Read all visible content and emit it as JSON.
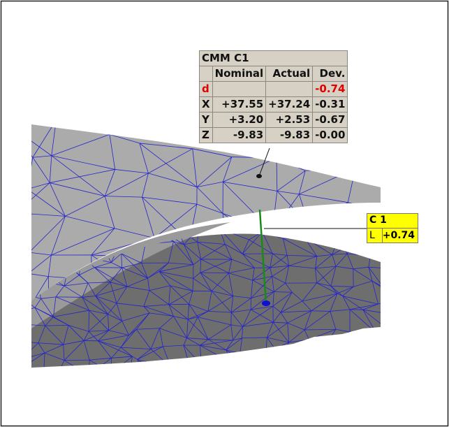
{
  "cmm_table": {
    "title": "CMM C1",
    "columns": [
      "Nominal",
      "Actual",
      "Dev."
    ],
    "rows": [
      {
        "label": "d",
        "dev": "-0.74"
      },
      {
        "label": "X",
        "nominal": "+37.55",
        "actual": "+37.24",
        "dev": "-0.31"
      },
      {
        "label": "Y",
        "nominal": "+3.20",
        "actual": "+2.53",
        "dev": "-0.67"
      },
      {
        "label": "Z",
        "nominal": "-9.83",
        "actual": "-9.83",
        "dev": "-0.00"
      }
    ]
  },
  "point_label": {
    "title": "C 1",
    "key": "L",
    "value": "+0.74"
  }
}
